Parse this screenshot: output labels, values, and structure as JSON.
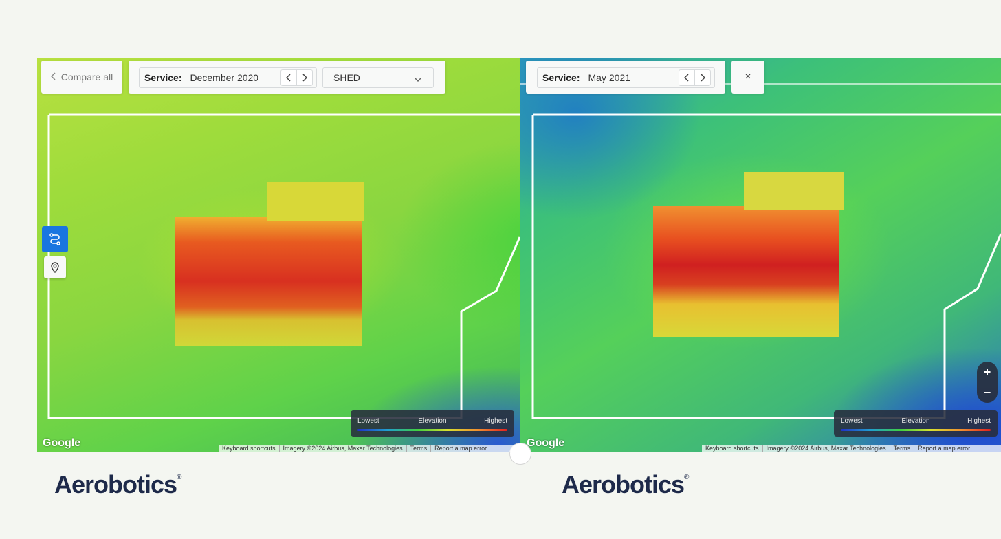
{
  "left_map": {
    "compare_button": "Compare all",
    "service_label": "Service:",
    "service_value": "December 2020",
    "layer_select": "SHED"
  },
  "right_map": {
    "service_label": "Service:",
    "service_value": "May 2021"
  },
  "legend": {
    "lowest": "Lowest",
    "title": "Elevation",
    "highest": "Highest"
  },
  "google_logo": "Google",
  "attribution": {
    "keyboard": "Keyboard shortcuts",
    "imagery": "Imagery ©2024 Airbus, Maxar Technologies",
    "terms": "Terms",
    "report": "Report a map error"
  },
  "zoom": {
    "in": "+",
    "out": "−"
  },
  "close": "×",
  "brand": {
    "name": "Aerobotics",
    "reg": "®"
  },
  "colors": {
    "accent": "#1976e0",
    "elevation_low": "#2030c8",
    "elevation_high": "#e02020",
    "brand_text": "#1e2a4a"
  },
  "icons": [
    "chevron-left-icon",
    "chevron-right-icon",
    "chevron-down-icon",
    "route-icon",
    "map-pin-icon",
    "close-icon"
  ]
}
